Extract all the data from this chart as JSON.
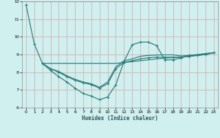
{
  "xlabel": "Humidex (Indice chaleur)",
  "background_color": "#cff0ee",
  "grid_color": "#e8c8c8",
  "line_color": "#2d7d7d",
  "xlim": [
    -0.5,
    23.5
  ],
  "ylim": [
    6,
    12
  ],
  "yticks": [
    6,
    7,
    8,
    9,
    10,
    11,
    12
  ],
  "xticks": [
    0,
    1,
    2,
    3,
    4,
    5,
    6,
    7,
    8,
    9,
    10,
    11,
    12,
    13,
    14,
    15,
    16,
    17,
    18,
    19,
    20,
    21,
    22,
    23
  ],
  "series": [
    {
      "x": [
        0,
        1,
        2,
        3,
        4,
        5,
        6,
        7,
        8,
        9,
        10,
        11,
        12,
        13,
        14,
        15,
        16,
        17,
        18,
        19,
        20,
        21,
        22,
        23
      ],
      "y": [
        11.8,
        9.6,
        8.5,
        8.1,
        7.75,
        7.45,
        7.1,
        6.8,
        6.65,
        6.45,
        6.6,
        7.3,
        8.6,
        9.55,
        9.7,
        9.7,
        9.5,
        8.7,
        8.7,
        8.8,
        8.95,
        8.95,
        9.05,
        9.1
      ],
      "markers": true
    },
    {
      "x": [
        2,
        3,
        4,
        5,
        6,
        7,
        8,
        9,
        10,
        11,
        12,
        13,
        14,
        15,
        16,
        17,
        18,
        19,
        20,
        21,
        22,
        23
      ],
      "y": [
        8.5,
        8.5,
        8.5,
        8.5,
        8.5,
        8.5,
        8.5,
        8.5,
        8.5,
        8.5,
        8.55,
        8.6,
        8.65,
        8.7,
        8.75,
        8.8,
        8.82,
        8.85,
        8.9,
        8.95,
        9.0,
        9.1
      ],
      "markers": false
    },
    {
      "x": [
        2,
        3,
        4,
        5,
        6,
        7,
        8,
        9,
        10,
        11,
        12,
        13,
        14,
        15,
        16,
        17,
        18,
        19,
        20,
        21,
        22,
        23
      ],
      "y": [
        8.5,
        8.2,
        8.0,
        7.75,
        7.55,
        7.4,
        7.3,
        7.1,
        7.35,
        8.2,
        8.55,
        8.65,
        8.75,
        8.82,
        8.85,
        8.85,
        8.85,
        8.85,
        8.9,
        8.95,
        9.0,
        9.1
      ],
      "markers": true
    },
    {
      "x": [
        2,
        3,
        4,
        5,
        6,
        7,
        8,
        9,
        10,
        11,
        12,
        13,
        14,
        15,
        16,
        17,
        18,
        19,
        20,
        21,
        22,
        23
      ],
      "y": [
        8.5,
        8.2,
        8.05,
        7.8,
        7.6,
        7.45,
        7.35,
        7.15,
        7.45,
        8.3,
        8.65,
        8.75,
        8.9,
        8.95,
        8.97,
        8.98,
        8.98,
        8.92,
        8.95,
        9.0,
        9.05,
        9.1
      ],
      "markers": false
    }
  ]
}
